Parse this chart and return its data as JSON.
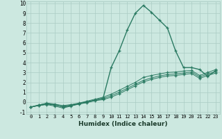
{
  "xlabel": "Humidex (Indice chaleur)",
  "background_color": "#cce8e0",
  "grid_color": "#aaccc4",
  "line_color": "#2a7a62",
  "xlim": [
    -0.5,
    23.5
  ],
  "ylim": [
    -1.2,
    10.2
  ],
  "xticks": [
    0,
    1,
    2,
    3,
    4,
    5,
    6,
    7,
    8,
    9,
    10,
    11,
    12,
    13,
    14,
    15,
    16,
    17,
    18,
    19,
    20,
    21,
    22,
    23
  ],
  "yticks": [
    -1,
    0,
    1,
    2,
    3,
    4,
    5,
    6,
    7,
    8,
    9,
    10
  ],
  "series": [
    {
      "x": [
        0,
        1,
        2,
        3,
        4,
        5,
        6,
        7,
        8,
        9,
        10,
        11,
        12,
        13,
        14,
        15,
        16,
        17,
        18,
        19,
        20,
        21,
        22,
        23
      ],
      "y": [
        -0.5,
        -0.3,
        -0.15,
        -0.25,
        -0.5,
        -0.35,
        -0.15,
        0.0,
        0.2,
        0.4,
        3.5,
        5.2,
        7.3,
        9.0,
        9.8,
        9.1,
        8.3,
        7.5,
        5.2,
        3.5,
        3.5,
        3.3,
        2.6,
        3.2
      ]
    },
    {
      "x": [
        0,
        1,
        2,
        3,
        4,
        5,
        6,
        7,
        8,
        9,
        10,
        11,
        12,
        13,
        14,
        15,
        16,
        17,
        18,
        19,
        20,
        21,
        22,
        23
      ],
      "y": [
        -0.5,
        -0.3,
        -0.1,
        -0.2,
        -0.35,
        -0.25,
        -0.1,
        0.1,
        0.3,
        0.5,
        0.8,
        1.2,
        1.6,
        2.0,
        2.5,
        2.7,
        2.85,
        3.0,
        3.05,
        3.15,
        3.2,
        2.7,
        3.0,
        3.3
      ]
    },
    {
      "x": [
        0,
        1,
        2,
        3,
        4,
        5,
        6,
        7,
        8,
        9,
        10,
        11,
        12,
        13,
        14,
        15,
        16,
        17,
        18,
        19,
        20,
        21,
        22,
        23
      ],
      "y": [
        -0.5,
        -0.35,
        -0.2,
        -0.3,
        -0.45,
        -0.3,
        -0.15,
        0.05,
        0.2,
        0.35,
        0.65,
        1.0,
        1.4,
        1.8,
        2.2,
        2.45,
        2.65,
        2.8,
        2.85,
        2.95,
        3.05,
        2.55,
        2.85,
        3.1
      ]
    },
    {
      "x": [
        0,
        1,
        2,
        3,
        4,
        5,
        6,
        7,
        8,
        9,
        10,
        11,
        12,
        13,
        14,
        15,
        16,
        17,
        18,
        19,
        20,
        21,
        22,
        23
      ],
      "y": [
        -0.5,
        -0.35,
        -0.25,
        -0.4,
        -0.6,
        -0.4,
        -0.2,
        -0.05,
        0.15,
        0.25,
        0.5,
        0.85,
        1.25,
        1.65,
        2.05,
        2.3,
        2.5,
        2.65,
        2.7,
        2.8,
        2.9,
        2.4,
        2.7,
        2.95
      ]
    }
  ]
}
